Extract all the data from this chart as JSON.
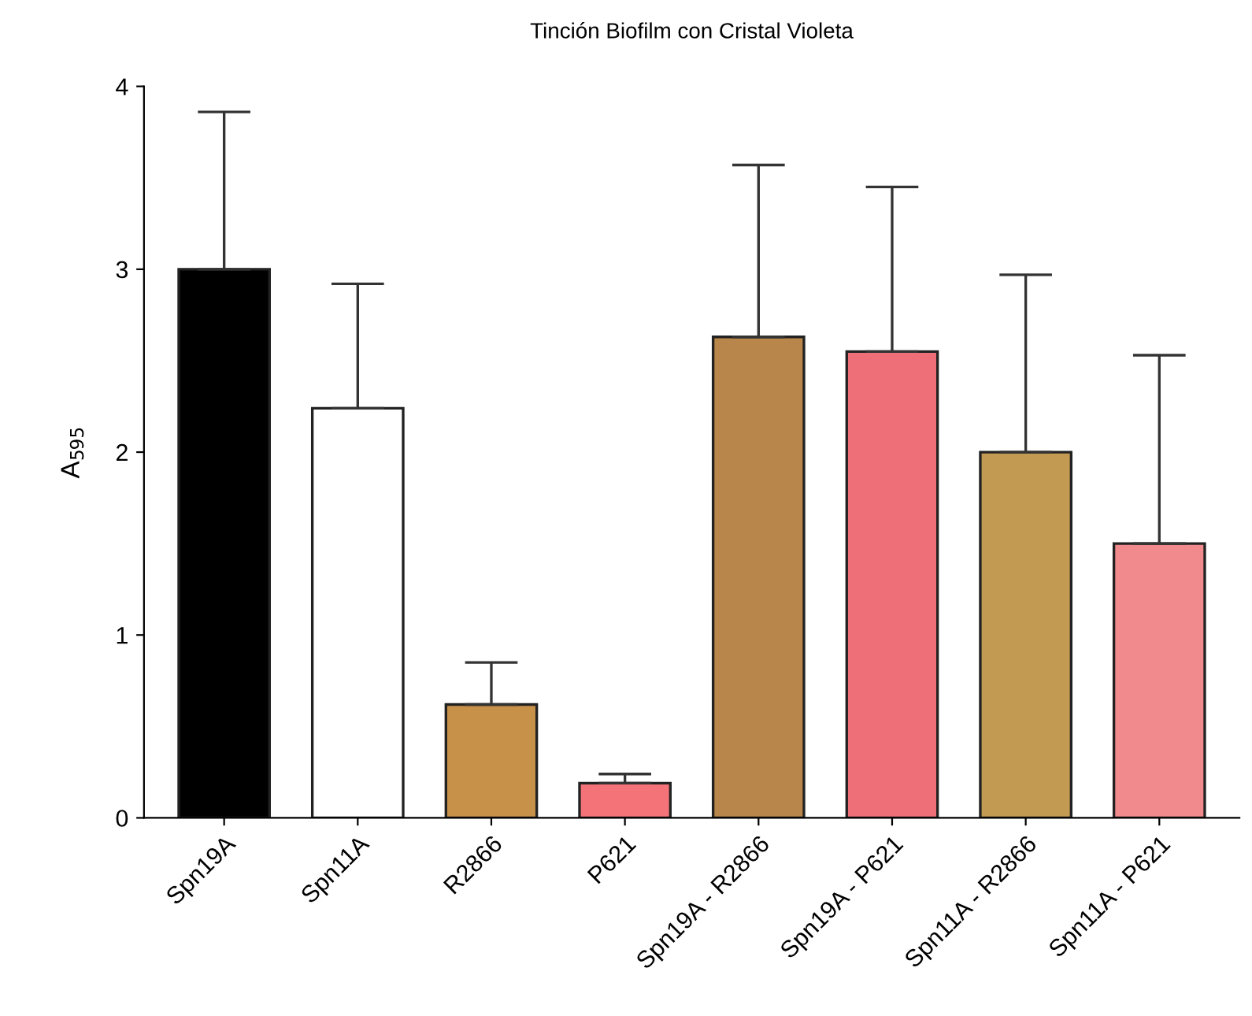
{
  "chart_data": {
    "type": "bar",
    "title": "Tinción Biofilm con Cristal Violeta",
    "ylabel": "A$_{595}$",
    "categories": [
      "Spn19A",
      "Spn11A",
      "R2866",
      "P621",
      "Spn19A - R2866",
      "Spn19A - P621",
      "Spn11A - R2866",
      "Spn11A - P621"
    ],
    "values": [
      3.0,
      2.24,
      0.62,
      0.19,
      2.63,
      2.55,
      2.0,
      1.5
    ],
    "errors": [
      [
        3.0,
        3.86
      ],
      [
        2.24,
        2.92
      ],
      [
        0.62,
        0.85
      ],
      [
        0.19,
        0.24
      ],
      [
        2.63,
        3.57
      ],
      [
        2.55,
        3.45
      ],
      [
        2.0,
        2.97
      ],
      [
        1.5,
        2.53
      ]
    ],
    "colors": [
      "#000000",
      "#ffffff",
      "#c8914a",
      "#f47378",
      "#b8864a",
      "#ef6f78",
      "#c39a52",
      "#f08a8c"
    ],
    "ylim": [
      0,
      4
    ],
    "yticks": [
      0,
      1,
      2,
      3,
      4
    ],
    "grid": false,
    "legend": false
  }
}
